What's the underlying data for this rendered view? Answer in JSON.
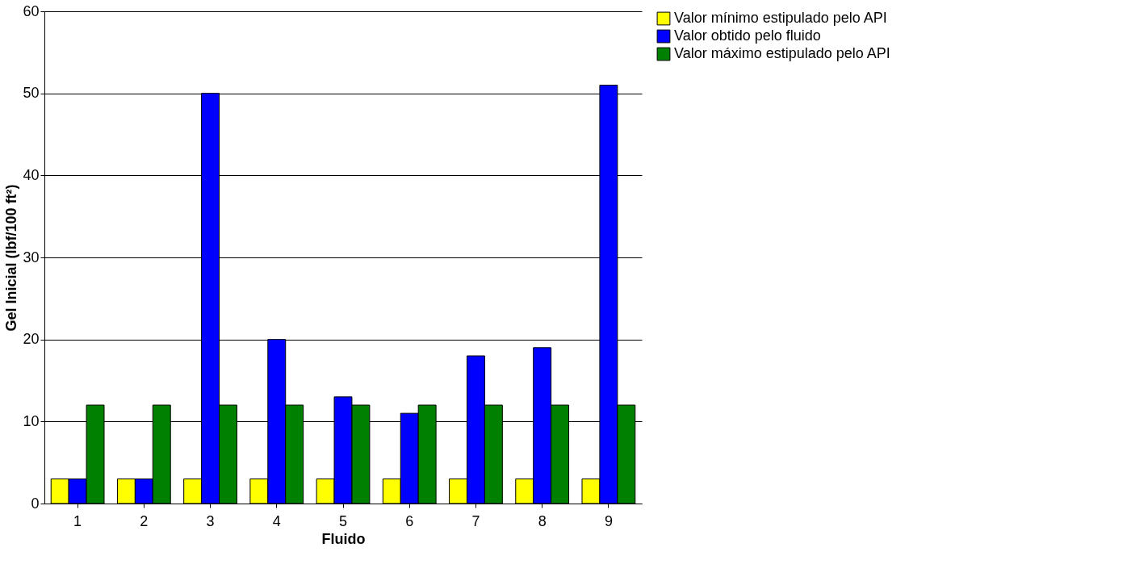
{
  "chart_data": {
    "type": "bar",
    "xlabel": "Fluido",
    "ylabel": "Gel Inicial (lbf/100 ft²)",
    "categories": [
      "1",
      "2",
      "3",
      "4",
      "5",
      "6",
      "7",
      "8",
      "9"
    ],
    "series": [
      {
        "name": "Valor mínimo estipulado pelo API",
        "color": "#ffff00",
        "values": [
          3,
          3,
          3,
          3,
          3,
          3,
          3,
          3,
          3
        ]
      },
      {
        "name": "Valor obtido pelo fluido",
        "color": "#0000ff",
        "values": [
          3,
          3,
          50,
          20,
          13,
          11,
          18,
          19,
          51
        ]
      },
      {
        "name": "Valor máximo estipulado pelo API",
        "color": "#008000",
        "values": [
          12,
          12,
          12,
          12,
          12,
          12,
          12,
          12,
          12
        ]
      }
    ],
    "ylim": [
      0,
      60
    ],
    "yticks": [
      0,
      10,
      20,
      30,
      40,
      50,
      60
    ],
    "grid": "y",
    "legend": "right"
  }
}
